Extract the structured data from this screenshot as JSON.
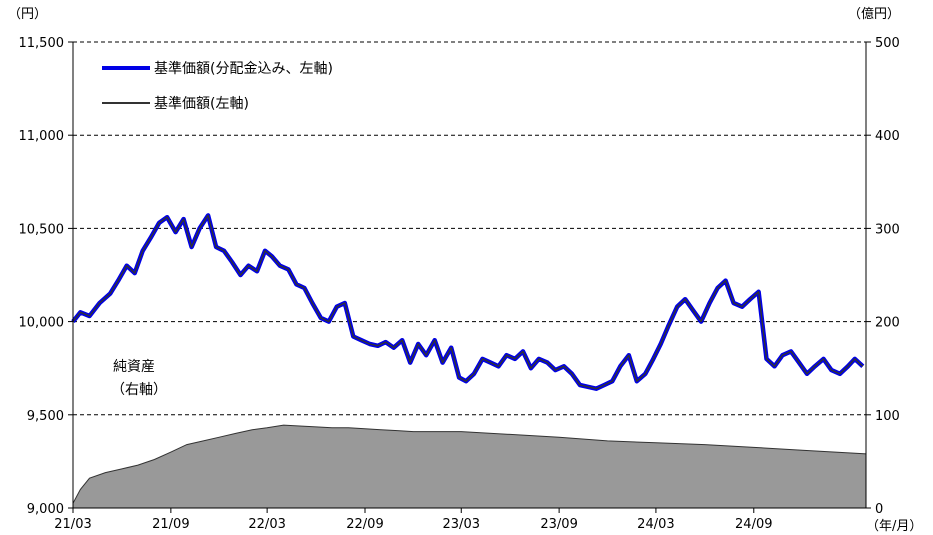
{
  "chart_data": {
    "type": "line",
    "left_axis_unit": "（円）",
    "right_axis_unit": "（億円）",
    "x_axis_unit": "（年/月）",
    "x_ticks": [
      "21/03",
      "21/09",
      "22/03",
      "22/09",
      "23/03",
      "23/09",
      "24/03",
      "24/09"
    ],
    "x_range": [
      "2021-03-01",
      "2025-03-31"
    ],
    "left_ylim": [
      9000,
      11500
    ],
    "left_ticks": [
      "9,000",
      "9,500",
      "10,000",
      "10,500",
      "11,000",
      "11,500"
    ],
    "left_tick_values": [
      9000,
      9500,
      10000,
      10500,
      11000,
      11500
    ],
    "right_ylim": [
      0,
      500
    ],
    "right_ticks": [
      "0",
      "100",
      "200",
      "300",
      "400",
      "500"
    ],
    "right_tick_values": [
      0,
      100,
      200,
      300,
      400,
      500
    ],
    "grid": "horizontal dashed",
    "legend_position": "top-left",
    "series": [
      {
        "name": "基準価額(分配金込み、左軸)",
        "axis": "left",
        "color": "#0000e6",
        "x": [
          "2021-03-01",
          "2021-03-15",
          "2021-04-01",
          "2021-04-20",
          "2021-05-10",
          "2021-05-25",
          "2021-06-10",
          "2021-06-25",
          "2021-07-10",
          "2021-07-25",
          "2021-08-10",
          "2021-08-25",
          "2021-09-10",
          "2021-09-25",
          "2021-10-10",
          "2021-10-25",
          "2021-11-10",
          "2021-11-25",
          "2021-12-10",
          "2021-12-25",
          "2022-01-10",
          "2022-01-25",
          "2022-02-10",
          "2022-02-25",
          "2022-03-10",
          "2022-03-25",
          "2022-04-10",
          "2022-04-25",
          "2022-05-10",
          "2022-05-25",
          "2022-06-10",
          "2022-06-25",
          "2022-07-10",
          "2022-07-25",
          "2022-08-10",
          "2022-08-25",
          "2022-09-10",
          "2022-09-25",
          "2022-10-10",
          "2022-10-25",
          "2022-11-10",
          "2022-11-25",
          "2022-12-10",
          "2022-12-25",
          "2023-01-10",
          "2023-01-25",
          "2023-02-10",
          "2023-02-25",
          "2023-03-10",
          "2023-03-25",
          "2023-04-10",
          "2023-04-25",
          "2023-05-10",
          "2023-05-25",
          "2023-06-10",
          "2023-06-25",
          "2023-07-10",
          "2023-07-25",
          "2023-08-10",
          "2023-08-25",
          "2023-09-10",
          "2023-09-25",
          "2023-10-10",
          "2023-10-25",
          "2023-11-10",
          "2023-11-25",
          "2023-12-10",
          "2023-12-25",
          "2024-01-10",
          "2024-01-25",
          "2024-02-10",
          "2024-02-25",
          "2024-03-10",
          "2024-03-25",
          "2024-04-10",
          "2024-04-25",
          "2024-05-10",
          "2024-05-25",
          "2024-06-10",
          "2024-06-25",
          "2024-07-10",
          "2024-07-25",
          "2024-08-10",
          "2024-08-25",
          "2024-09-10",
          "2024-09-25",
          "2024-10-10",
          "2024-10-25",
          "2024-11-10",
          "2024-11-25",
          "2024-12-10",
          "2024-12-25",
          "2025-01-10",
          "2025-01-25",
          "2025-02-10",
          "2025-02-25",
          "2025-03-10",
          "2025-03-25"
        ],
        "values": [
          10000,
          10050,
          10030,
          10100,
          10150,
          10220,
          10300,
          10260,
          10380,
          10450,
          10530,
          10560,
          10480,
          10550,
          10400,
          10500,
          10570,
          10400,
          10380,
          10320,
          10250,
          10300,
          10270,
          10380,
          10350,
          10300,
          10280,
          10200,
          10180,
          10100,
          10020,
          10000,
          10080,
          10100,
          9920,
          9900,
          9880,
          9870,
          9890,
          9860,
          9900,
          9780,
          9880,
          9820,
          9900,
          9780,
          9860,
          9700,
          9680,
          9720,
          9800,
          9780,
          9760,
          9820,
          9800,
          9840,
          9750,
          9800,
          9780,
          9740,
          9760,
          9720,
          9660,
          9650,
          9640,
          9660,
          9680,
          9760,
          9820,
          9680,
          9720,
          9800,
          9880,
          9980,
          10080,
          10120,
          10060,
          10000,
          10100,
          10180,
          10220,
          10100,
          10080,
          10120,
          10160,
          9800,
          9760,
          9820,
          9840,
          9780,
          9720,
          9760,
          9800,
          9740,
          9720,
          9760,
          9800,
          9760
        ]
      },
      {
        "name": "基準価額(左軸)",
        "axis": "left",
        "color": "#333333",
        "x": [
          "2021-03-01",
          "2021-03-15",
          "2021-04-01",
          "2021-04-20",
          "2021-05-10",
          "2021-05-25",
          "2021-06-10",
          "2021-06-25",
          "2021-07-10",
          "2021-07-25",
          "2021-08-10",
          "2021-08-25",
          "2021-09-10",
          "2021-09-25",
          "2021-10-10",
          "2021-10-25",
          "2021-11-10",
          "2021-11-25",
          "2021-12-10",
          "2021-12-25",
          "2022-01-10",
          "2022-01-25",
          "2022-02-10",
          "2022-02-25",
          "2022-03-10",
          "2022-03-25",
          "2022-04-10",
          "2022-04-25",
          "2022-05-10",
          "2022-05-25",
          "2022-06-10",
          "2022-06-25",
          "2022-07-10",
          "2022-07-25",
          "2022-08-10",
          "2022-08-25",
          "2022-09-10",
          "2022-09-25",
          "2022-10-10",
          "2022-10-25",
          "2022-11-10",
          "2022-11-25",
          "2022-12-10",
          "2022-12-25",
          "2023-01-10",
          "2023-01-25",
          "2023-02-10",
          "2023-02-25",
          "2023-03-10",
          "2023-03-25",
          "2023-04-10",
          "2023-04-25",
          "2023-05-10",
          "2023-05-25",
          "2023-06-10",
          "2023-06-25",
          "2023-07-10",
          "2023-07-25",
          "2023-08-10",
          "2023-08-25",
          "2023-09-10",
          "2023-09-25",
          "2023-10-10",
          "2023-10-25",
          "2023-11-10",
          "2023-11-25",
          "2023-12-10",
          "2023-12-25",
          "2024-01-10",
          "2024-01-25",
          "2024-02-10",
          "2024-02-25",
          "2024-03-10",
          "2024-03-25",
          "2024-04-10",
          "2024-04-25",
          "2024-05-10",
          "2024-05-25",
          "2024-06-10",
          "2024-06-25",
          "2024-07-10",
          "2024-07-25",
          "2024-08-10",
          "2024-08-25",
          "2024-09-10",
          "2024-09-25",
          "2024-10-10",
          "2024-10-25",
          "2024-11-10",
          "2024-11-25",
          "2024-12-10",
          "2024-12-25",
          "2025-01-10",
          "2025-01-25",
          "2025-02-10",
          "2025-02-25",
          "2025-03-10",
          "2025-03-25"
        ],
        "values": [
          10000,
          10050,
          10030,
          10100,
          10150,
          10220,
          10300,
          10260,
          10380,
          10450,
          10530,
          10560,
          10480,
          10550,
          10400,
          10500,
          10570,
          10400,
          10380,
          10320,
          10250,
          10300,
          10270,
          10380,
          10350,
          10300,
          10280,
          10200,
          10180,
          10100,
          10020,
          10000,
          10080,
          10100,
          9920,
          9900,
          9880,
          9870,
          9890,
          9860,
          9900,
          9780,
          9880,
          9820,
          9900,
          9780,
          9860,
          9700,
          9680,
          9720,
          9800,
          9780,
          9760,
          9820,
          9800,
          9840,
          9750,
          9800,
          9780,
          9740,
          9760,
          9720,
          9660,
          9650,
          9640,
          9660,
          9680,
          9760,
          9820,
          9680,
          9720,
          9800,
          9880,
          9980,
          10080,
          10120,
          10060,
          10000,
          10100,
          10180,
          10220,
          10100,
          10080,
          10120,
          10160,
          9800,
          9760,
          9820,
          9840,
          9780,
          9720,
          9760,
          9800,
          9740,
          9720,
          9760,
          9800,
          9760
        ]
      },
      {
        "name": "純資産",
        "axis": "right",
        "type": "area",
        "color": "#999999",
        "x": [
          "2021-03-01",
          "2021-03-15",
          "2021-04-01",
          "2021-05-01",
          "2021-06-01",
          "2021-07-01",
          "2021-08-01",
          "2021-09-01",
          "2021-10-01",
          "2021-11-01",
          "2021-12-01",
          "2022-01-01",
          "2022-02-01",
          "2022-03-01",
          "2022-04-01",
          "2022-05-01",
          "2022-06-01",
          "2022-07-01",
          "2022-08-01",
          "2022-09-01",
          "2022-10-01",
          "2022-11-01",
          "2022-12-01",
          "2023-01-01",
          "2023-03-01",
          "2023-06-01",
          "2023-09-01",
          "2023-12-01",
          "2024-03-01",
          "2024-06-01",
          "2024-09-01",
          "2024-12-01",
          "2025-03-31"
        ],
        "values": [
          5,
          20,
          32,
          38,
          42,
          46,
          52,
          60,
          68,
          72,
          76,
          80,
          84,
          86,
          89,
          88,
          87,
          86,
          86,
          85,
          84,
          83,
          82,
          82,
          82,
          79,
          76,
          72,
          70,
          68,
          65,
          62,
          58
        ]
      }
    ],
    "annotation": "純資産",
    "annotation_sub": "（右軸）"
  }
}
